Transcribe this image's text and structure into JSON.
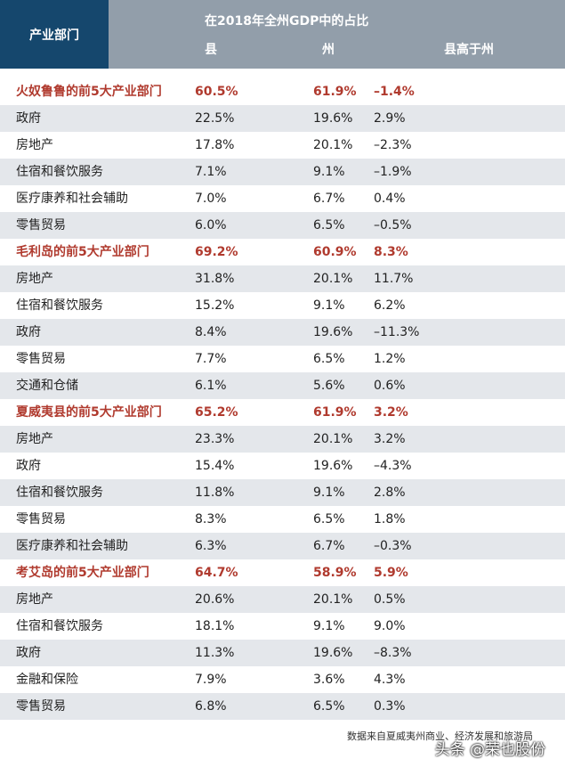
{
  "header": {
    "category_label": "产业部门",
    "title": "在2018年全州GDP中的占比",
    "col_county": "县",
    "col_state": "州",
    "col_diff": "县高于州"
  },
  "rows": [
    {
      "name": "火奴鲁鲁的前5大产业部门",
      "county": "60.5%",
      "state": "61.9%",
      "diff": "–1.4%",
      "group": true
    },
    {
      "name": "政府",
      "county": "22.5%",
      "state": "19.6%",
      "diff": "2.9%"
    },
    {
      "name": "房地产",
      "county": "17.8%",
      "state": "20.1%",
      "diff": "–2.3%"
    },
    {
      "name": "住宿和餐饮服务",
      "county": "7.1%",
      "state": "9.1%",
      "diff": "–1.9%"
    },
    {
      "name": "医疗康养和社会辅助",
      "county": "7.0%",
      "state": "6.7%",
      "diff": "0.4%"
    },
    {
      "name": "零售贸易",
      "county": "6.0%",
      "state": "6.5%",
      "diff": "–0.5%"
    },
    {
      "name": "毛利岛的前5大产业部门",
      "county": "69.2%",
      "state": "60.9%",
      "diff": "8.3%",
      "group": true
    },
    {
      "name": "房地产",
      "county": "31.8%",
      "state": "20.1%",
      "diff": "11.7%"
    },
    {
      "name": "住宿和餐饮服务",
      "county": "15.2%",
      "state": "9.1%",
      "diff": "6.2%"
    },
    {
      "name": "政府",
      "county": "8.4%",
      "state": "19.6%",
      "diff": "–11.3%"
    },
    {
      "name": "零售贸易",
      "county": "7.7%",
      "state": "6.5%",
      "diff": "1.2%"
    },
    {
      "name": "交通和仓储",
      "county": "6.1%",
      "state": "5.6%",
      "diff": "0.6%"
    },
    {
      "name": "夏威夷县的前5大产业部门",
      "county": "65.2%",
      "state": "61.9%",
      "diff": "3.2%",
      "group": true
    },
    {
      "name": "房地产",
      "county": "23.3%",
      "state": "20.1%",
      "diff": "3.2%"
    },
    {
      "name": "政府",
      "county": "15.4%",
      "state": "19.6%",
      "diff": "–4.3%"
    },
    {
      "name": "住宿和餐饮服务",
      "county": "11.8%",
      "state": "9.1%",
      "diff": "2.8%"
    },
    {
      "name": "零售贸易",
      "county": "8.3%",
      "state": "6.5%",
      "diff": "1.8%"
    },
    {
      "name": "医疗康养和社会辅助",
      "county": "6.3%",
      "state": "6.7%",
      "diff": "–0.3%"
    },
    {
      "name": "考艾岛的前5大产业部门",
      "county": "64.7%",
      "state": "58.9%",
      "diff": "5.9%",
      "group": true
    },
    {
      "name": "房地产",
      "county": "20.6%",
      "state": "20.1%",
      "diff": "0.5%"
    },
    {
      "name": "住宿和餐饮服务",
      "county": "18.1%",
      "state": "9.1%",
      "diff": "9.0%"
    },
    {
      "name": "政府",
      "county": "11.3%",
      "state": "19.6%",
      "diff": "–8.3%"
    },
    {
      "name": "金融和保险",
      "county": "7.9%",
      "state": "3.6%",
      "diff": "4.3%"
    },
    {
      "name": "零售贸易",
      "county": "6.8%",
      "state": "6.5%",
      "diff": "0.3%"
    }
  ],
  "footnote": "数据来自夏威夷州商业、经济发展和旅游局",
  "watermark": "头条 @荣也股份",
  "colors": {
    "header_left": "#15476d",
    "header_right": "#929eaa",
    "group_text": "#b03a2e",
    "alt_row": "#e4e7eb"
  }
}
